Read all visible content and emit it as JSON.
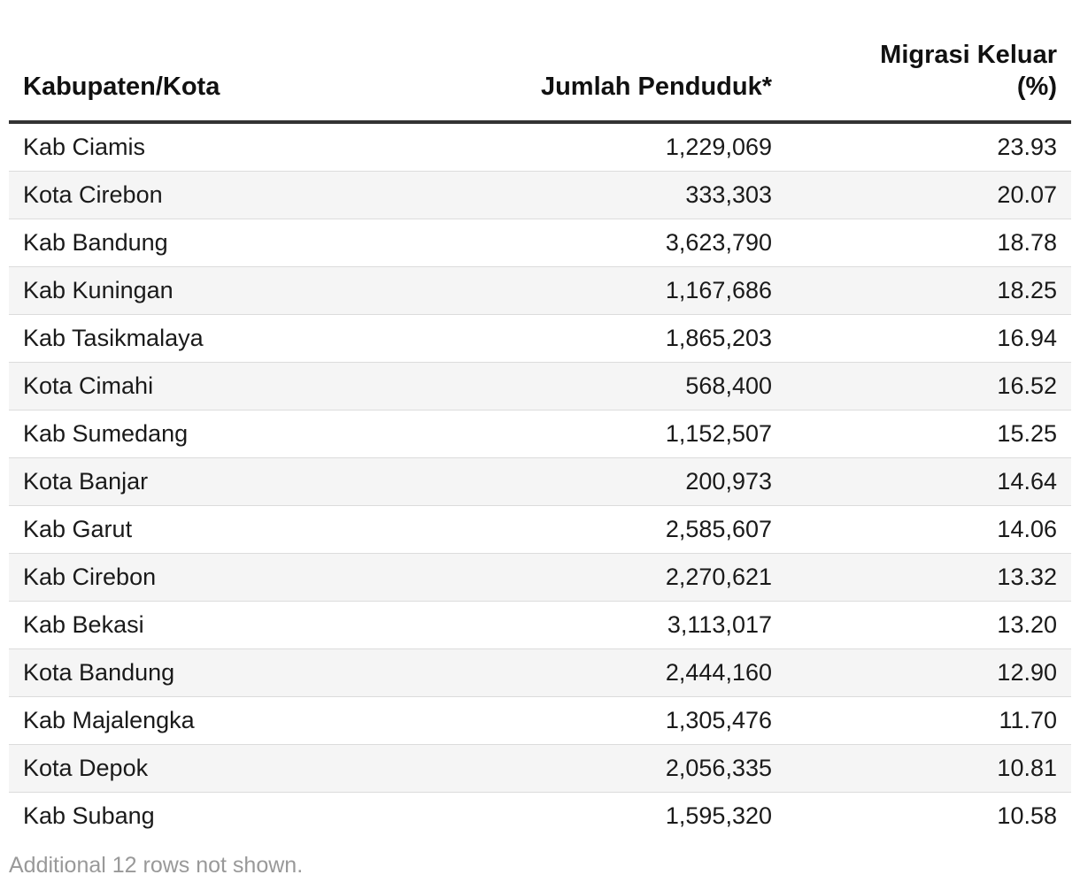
{
  "table": {
    "headers": {
      "region": "Kabupaten/Kota",
      "population": "Jumlah Penduduk*",
      "migration": "Migrasi Keluar (%)"
    },
    "rows": [
      {
        "region": "Kab Ciamis",
        "population": "1,229,069",
        "migration": "23.93"
      },
      {
        "region": "Kota Cirebon",
        "population": "333,303",
        "migration": "20.07"
      },
      {
        "region": "Kab Bandung",
        "population": "3,623,790",
        "migration": "18.78"
      },
      {
        "region": "Kab Kuningan",
        "population": "1,167,686",
        "migration": "18.25"
      },
      {
        "region": "Kab Tasikmalaya",
        "population": "1,865,203",
        "migration": "16.94"
      },
      {
        "region": "Kota Cimahi",
        "population": "568,400",
        "migration": "16.52"
      },
      {
        "region": "Kab Sumedang",
        "population": "1,152,507",
        "migration": "15.25"
      },
      {
        "region": "Kota Banjar",
        "population": "200,973",
        "migration": "14.64"
      },
      {
        "region": "Kab Garut",
        "population": "2,585,607",
        "migration": "14.06"
      },
      {
        "region": "Kab Cirebon",
        "population": "2,270,621",
        "migration": "13.32"
      },
      {
        "region": "Kab Bekasi",
        "population": "3,113,017",
        "migration": "13.20"
      },
      {
        "region": "Kota Bandung",
        "population": "2,444,160",
        "migration": "12.90"
      },
      {
        "region": "Kab Majalengka",
        "population": "1,305,476",
        "migration": "11.70"
      },
      {
        "region": "Kota Depok",
        "population": "2,056,335",
        "migration": "10.81"
      },
      {
        "region": "Kab Subang",
        "population": "1,595,320",
        "migration": "10.58"
      }
    ]
  },
  "footnote": "Additional 12 rows not shown."
}
